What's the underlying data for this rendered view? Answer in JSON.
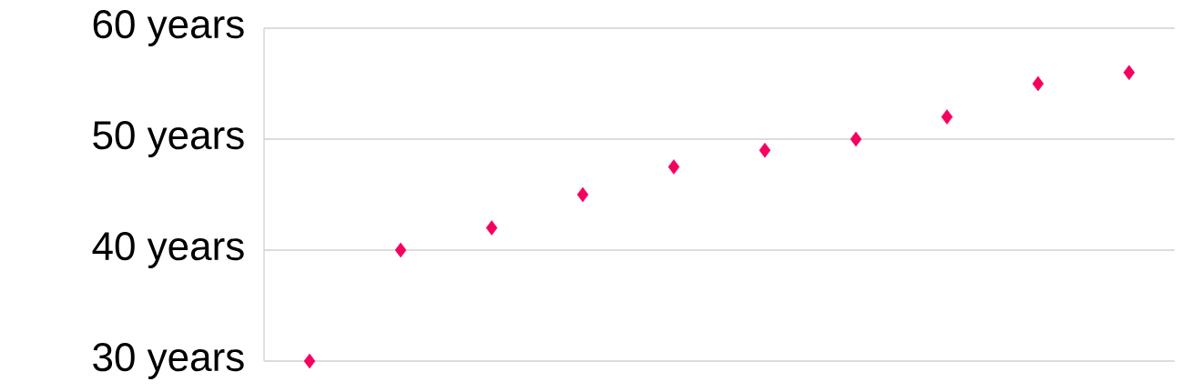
{
  "chart_data": {
    "type": "scatter",
    "categories": [
      null,
      null,
      null,
      null,
      null,
      null,
      null,
      null,
      null,
      null
    ],
    "values": [
      30,
      40,
      42,
      45,
      47.5,
      49,
      50,
      52,
      55,
      56
    ],
    "color": "#f5005f",
    "marker": "diamond",
    "ylim": [
      30,
      60
    ],
    "yticks": [
      {
        "value": 30,
        "label": "30 years"
      },
      {
        "value": 40,
        "label": "40 years"
      },
      {
        "value": 50,
        "label": "50 years"
      },
      {
        "value": 60,
        "label": "60 years"
      }
    ],
    "grid": "y",
    "tick_labels": "y"
  }
}
